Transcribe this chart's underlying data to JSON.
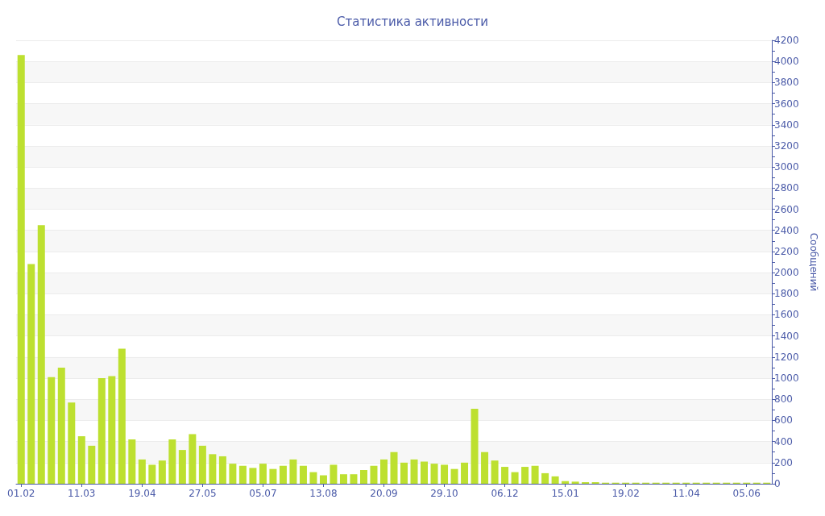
{
  "chart_data": {
    "type": "bar",
    "title": "Статистика активности",
    "ylabel": "Сообщений",
    "categories": [
      "01.02",
      null,
      null,
      null,
      null,
      null,
      "11.03",
      null,
      null,
      null,
      null,
      null,
      "19.04",
      null,
      null,
      null,
      null,
      null,
      "27.05",
      null,
      null,
      null,
      null,
      null,
      "05.07",
      null,
      null,
      null,
      null,
      null,
      "13.08",
      null,
      null,
      null,
      null,
      null,
      "20.09",
      null,
      null,
      null,
      null,
      null,
      "29.10",
      null,
      null,
      null,
      null,
      null,
      "06.12",
      null,
      null,
      null,
      null,
      null,
      "15.01",
      null,
      null,
      null,
      null,
      null,
      "19.02",
      null,
      null,
      null,
      null,
      null,
      "11.04",
      null,
      null,
      null,
      null,
      null,
      "05.06",
      null,
      null
    ],
    "values": [
      4060,
      2080,
      2450,
      1010,
      1100,
      770,
      450,
      360,
      1000,
      1020,
      1280,
      420,
      230,
      180,
      220,
      420,
      320,
      470,
      360,
      280,
      260,
      190,
      170,
      150,
      190,
      140,
      170,
      230,
      170,
      110,
      80,
      180,
      90,
      90,
      130,
      170,
      230,
      300,
      200,
      230,
      210,
      190,
      180,
      140,
      200,
      710,
      300,
      220,
      160,
      110,
      160,
      170,
      100,
      70,
      25,
      20,
      15,
      15,
      10,
      10,
      10,
      10,
      10,
      10,
      10,
      10,
      10,
      10,
      10,
      10,
      10,
      10,
      10,
      10,
      10
    ],
    "color": "#bde030",
    "ylim": [
      0,
      4200
    ],
    "yticks": [
      0,
      {
        "value": 100,
        "label": null
      },
      200,
      {
        "value": 300,
        "label": null
      },
      400,
      {
        "value": 500,
        "label": null
      },
      600,
      {
        "value": 700,
        "label": null
      },
      800,
      {
        "value": 900,
        "label": null
      },
      1000,
      {
        "value": 1100,
        "label": null
      },
      1200,
      {
        "value": 1300,
        "label": null
      },
      1400,
      {
        "value": 1500,
        "label": null
      },
      1600,
      {
        "value": 1700,
        "label": null
      },
      1800,
      {
        "value": 1900,
        "label": null
      },
      2000,
      {
        "value": 2100,
        "label": null
      },
      2200,
      {
        "value": 2300,
        "label": null
      },
      2400,
      {
        "value": 2500,
        "label": null
      },
      2600,
      {
        "value": 2700,
        "label": null
      },
      2800,
      {
        "value": 2900,
        "label": null
      },
      3000,
      {
        "value": 3100,
        "label": null
      },
      3200,
      {
        "value": 3300,
        "label": null
      },
      3400,
      {
        "value": 3500,
        "label": null
      },
      3600,
      {
        "value": 3700,
        "label": null
      },
      3800,
      {
        "value": 3900,
        "label": null
      },
      4000,
      {
        "value": 4100,
        "label": null
      },
      4200
    ],
    "grid": "y"
  }
}
